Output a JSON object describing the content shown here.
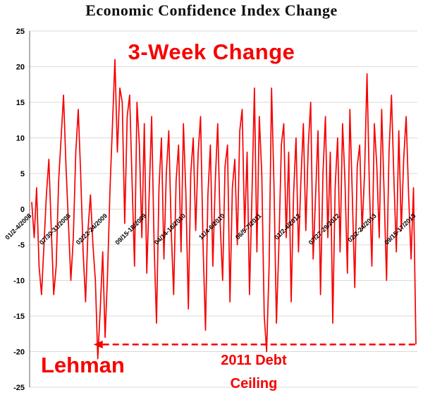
{
  "chart_data": {
    "type": "line",
    "title": "Economic Confidence Index Change",
    "series_label": "3-Week Change",
    "line_color": "#f60000",
    "grid_color": "#d9d9d9",
    "axis_color": "#7f7f7f",
    "ylim": [
      -25,
      25
    ],
    "ytick_step": 5,
    "x_tick_labels": [
      "01/2-4/2008",
      "07/30-31/2008",
      "02/22-24/2009",
      "09/15-18/2009",
      "04/14-16/2010",
      "11/4-6/2010",
      "06/5-7/2011",
      "01/2-4/2012",
      "07/27-29/2012",
      "02/2-24/2013",
      "09/15-17/2013"
    ],
    "values": [
      1,
      -4,
      3,
      -8,
      -12,
      -5,
      2,
      7,
      -3,
      -12,
      -8,
      4,
      10,
      16,
      6,
      -2,
      -10,
      -4,
      8,
      14,
      5,
      -6,
      -13,
      -3,
      2,
      -5,
      -10,
      -21,
      -14,
      -6,
      -18,
      -9,
      3,
      12,
      21,
      8,
      17,
      15,
      -2,
      13,
      16,
      4,
      -8,
      15,
      9,
      -4,
      12,
      -9,
      2,
      13,
      -5,
      -16,
      3,
      10,
      -7,
      5,
      11,
      -3,
      -12,
      4,
      9,
      -6,
      12,
      2,
      -14,
      5,
      10,
      -3,
      8,
      13,
      -5,
      -17,
      2,
      9,
      -8,
      4,
      12,
      -2,
      -10,
      6,
      9,
      -13,
      3,
      7,
      -5,
      11,
      14,
      -3,
      8,
      -12,
      2,
      17,
      -6,
      13,
      5,
      -15,
      -20,
      -8,
      17,
      3,
      -16,
      -5,
      9,
      12,
      -4,
      8,
      -13,
      2,
      10,
      -6,
      4,
      12,
      -3,
      9,
      15,
      -7,
      2,
      11,
      -12,
      5,
      13,
      -4,
      8,
      -16,
      3,
      10,
      -6,
      12,
      4,
      -9,
      14,
      2,
      -11,
      6,
      9,
      -3,
      5,
      19,
      3,
      -8,
      12,
      6,
      -4,
      14,
      2,
      -10,
      8,
      16,
      4,
      -6,
      11,
      -3,
      7,
      13,
      2,
      -7,
      3,
      -19
    ],
    "annotations": {
      "lehman": "Lehman",
      "debt_ceiling": "2011 Debt\nCeiling",
      "arrow": {
        "y": -19,
        "start_index": 27,
        "end_index": 157
      }
    }
  }
}
